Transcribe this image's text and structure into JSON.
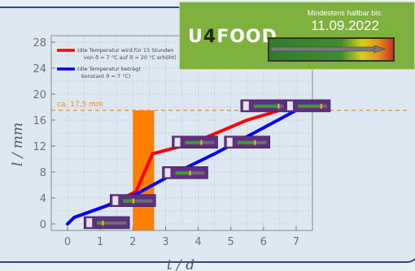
{
  "chart_data": {
    "type": "line",
    "xlabel": "t / d",
    "ylabel": "l / mm",
    "xlim": [
      -0.5,
      7.5
    ],
    "ylim": [
      -1,
      29
    ],
    "xticks": [
      0,
      1,
      2,
      3,
      4,
      5,
      6,
      7
    ],
    "yticks": [
      0,
      4,
      8,
      12,
      16,
      20,
      24,
      28
    ],
    "grid": true,
    "legend_position": "top-left",
    "series": [
      {
        "name": "(die Temperatur wird für 15 Stunden von ϑ = 7 °C auf ϑ = 20 °C erhöht)",
        "color": "#ff0000",
        "x": [
          0,
          0.2,
          1.2,
          2.1,
          2.6,
          3.8,
          5.5,
          6.5
        ],
        "y": [
          0,
          1,
          2.8,
          5,
          10.8,
          12.4,
          16,
          17.5
        ]
      },
      {
        "name": "(die Temperatur beträgt konstant ϑ = 7 °C)",
        "color": "#0000ff",
        "x": [
          0,
          0.2,
          1.2,
          2.1,
          3.2,
          4.5,
          5.7,
          7.0
        ],
        "y": [
          0,
          1,
          2.8,
          4.6,
          7.6,
          10.8,
          14,
          17.5
        ]
      }
    ],
    "annotations": {
      "threshold_label": "ca. 17,5 mm",
      "threshold_value": 17.5,
      "threshold_color": "#f08a1c",
      "highlight_band": {
        "x_start": 2.0,
        "x_end": 2.65,
        "y_end": 17.5,
        "color": "#ff7f00"
      }
    },
    "mini_labels": [
      {
        "x": 1.2,
        "y": 0.2,
        "level": 0.2
      },
      {
        "x": 2.0,
        "y": 3.6,
        "level": 0.35
      },
      {
        "x": 3.6,
        "y": 7.9,
        "level": 0.5
      },
      {
        "x": 3.9,
        "y": 12.6,
        "level": 0.55
      },
      {
        "x": 5.5,
        "y": 12.6,
        "level": 0.6
      },
      {
        "x": 6.0,
        "y": 18.2,
        "level": 0.85
      },
      {
        "x": 7.35,
        "y": 18.2,
        "level": 0.8
      }
    ]
  },
  "banner": {
    "logo_start": "U",
    "logo_four": "4",
    "logo_end": "FOOD",
    "caption": "Mindestens haltbar bis:",
    "date": "11.09.2022"
  }
}
